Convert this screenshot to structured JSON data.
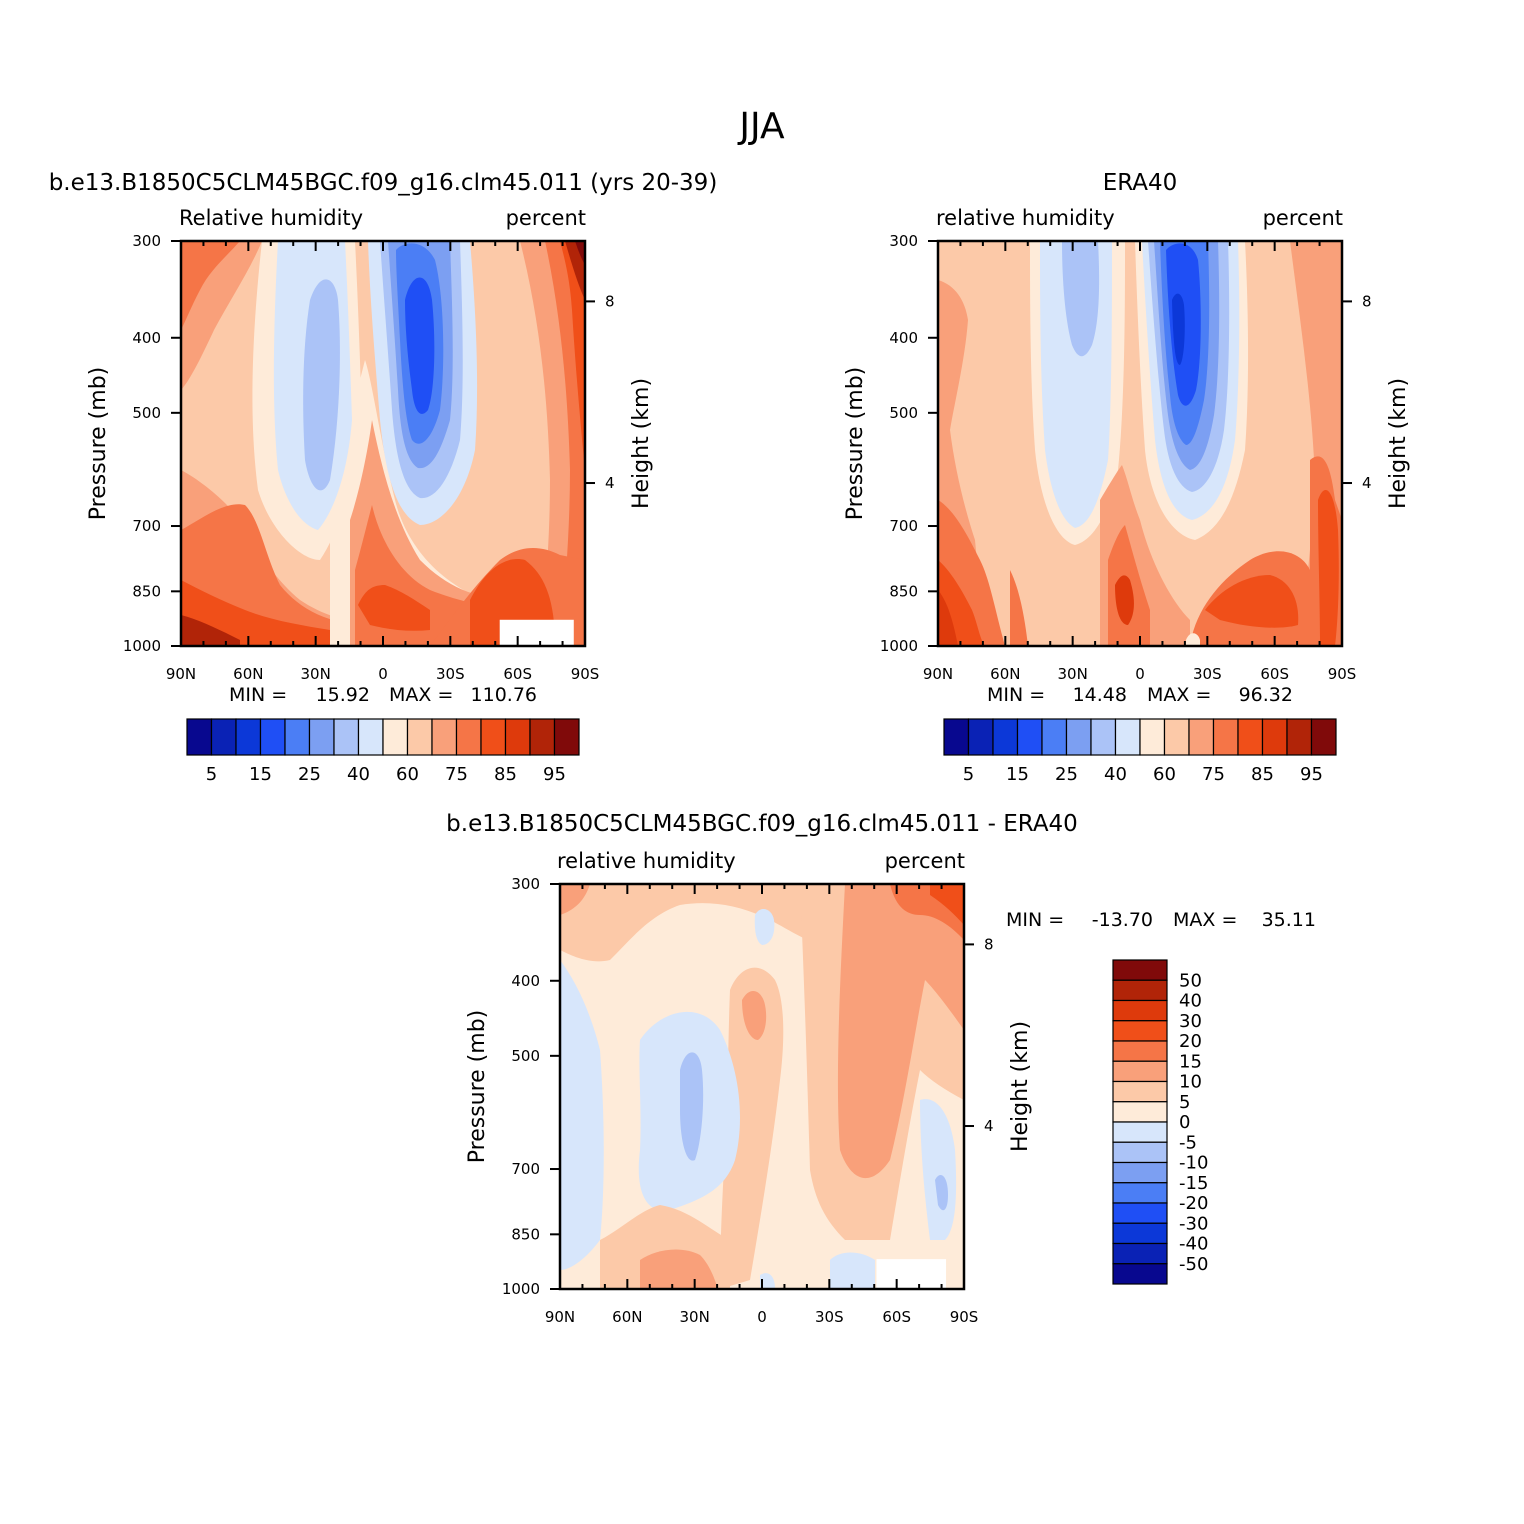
{
  "figure": {
    "season_title": "JJA"
  },
  "chart_data": [
    {
      "type": "heatmap",
      "id": "model",
      "title": "b.e13.B1850C5CLM45BGC.f09_g16.clm45.011 (yrs 20-39)",
      "left_label": "Relative humidity",
      "right_label": "percent",
      "ylabel": "Pressure (mb)",
      "ylabel_right": "Height (km)",
      "x_ticks": [
        "90N",
        "60N",
        "30N",
        "0",
        "30S",
        "60S",
        "90S"
      ],
      "x_values": [
        90,
        60,
        30,
        0,
        -30,
        -60,
        -90
      ],
      "xlim": [
        90,
        -90
      ],
      "y_ticks": [
        300,
        400,
        500,
        700,
        850,
        1000
      ],
      "ylim": [
        300,
        1000
      ],
      "y_scale": "log",
      "height_ticks": [
        {
          "label": "8",
          "pressure": 359
        },
        {
          "label": "4",
          "pressure": 616
        }
      ],
      "min_label": "MIN =",
      "min_value": "15.92",
      "max_label": "MAX =",
      "max_value": "110.76",
      "colorbar": {
        "orientation": "horizontal",
        "labels": [
          "5",
          "15",
          "25",
          "40",
          "60",
          "75",
          "85",
          "95"
        ],
        "colors": [
          "#08088f",
          "#0a22b5",
          "#0c38d8",
          "#1f4ff5",
          "#4b7ef5",
          "#7c9ff2",
          "#abc3f7",
          "#d7e6fb",
          "#feebd9",
          "#fcc9a8",
          "#f9a07a",
          "#f57547",
          "#f04f19",
          "#de3a0c",
          "#b12408",
          "#800a0a"
        ]
      },
      "masked_region": {
        "lat": [
          -52,
          -85
        ],
        "pressure": [
          925,
          1000
        ]
      }
    },
    {
      "type": "heatmap",
      "id": "obs",
      "title": "ERA40",
      "left_label": "relative humidity",
      "right_label": "percent",
      "ylabel": "Pressure (mb)",
      "ylabel_right": "Height (km)",
      "x_ticks": [
        "90N",
        "60N",
        "30N",
        "0",
        "30S",
        "60S",
        "90S"
      ],
      "x_values": [
        90,
        60,
        30,
        0,
        -30,
        -60,
        -90
      ],
      "xlim": [
        90,
        -90
      ],
      "y_ticks": [
        300,
        400,
        500,
        700,
        850,
        1000
      ],
      "ylim": [
        300,
        1000
      ],
      "y_scale": "log",
      "height_ticks": [
        {
          "label": "8",
          "pressure": 359
        },
        {
          "label": "4",
          "pressure": 616
        }
      ],
      "min_label": "MIN =",
      "min_value": "14.48",
      "max_label": "MAX =",
      "max_value": "96.32",
      "colorbar": {
        "orientation": "horizontal",
        "labels": [
          "5",
          "15",
          "25",
          "40",
          "60",
          "75",
          "85",
          "95"
        ],
        "colors": [
          "#08088f",
          "#0a22b5",
          "#0c38d8",
          "#1f4ff5",
          "#4b7ef5",
          "#7c9ff2",
          "#abc3f7",
          "#d7e6fb",
          "#feebd9",
          "#fcc9a8",
          "#f9a07a",
          "#f57547",
          "#f04f19",
          "#de3a0c",
          "#b12408",
          "#800a0a"
        ]
      }
    },
    {
      "type": "heatmap",
      "id": "diff",
      "title": "b.e13.B1850C5CLM45BGC.f09_g16.clm45.011 - ERA40",
      "left_label": "relative humidity",
      "right_label": "percent",
      "ylabel": "Pressure (mb)",
      "ylabel_right": "Height (km)",
      "x_ticks": [
        "90N",
        "60N",
        "30N",
        "0",
        "30S",
        "60S",
        "90S"
      ],
      "x_values": [
        90,
        60,
        30,
        0,
        -30,
        -60,
        -90
      ],
      "xlim": [
        90,
        -90
      ],
      "y_ticks": [
        300,
        400,
        500,
        700,
        850,
        1000
      ],
      "ylim": [
        300,
        1000
      ],
      "y_scale": "log",
      "height_ticks": [
        {
          "label": "8",
          "pressure": 359
        },
        {
          "label": "4",
          "pressure": 616
        }
      ],
      "min_label": "MIN =",
      "min_value": "-13.70",
      "max_label": "MAX =",
      "max_value": "35.11",
      "colorbar": {
        "orientation": "vertical",
        "labels": [
          "50",
          "40",
          "30",
          "20",
          "15",
          "10",
          "5",
          "0",
          "-5",
          "-10",
          "-15",
          "-20",
          "-30",
          "-40",
          "-50"
        ],
        "colors": [
          "#800a0a",
          "#b12408",
          "#de3a0c",
          "#f04f19",
          "#f57547",
          "#f9a07a",
          "#fcc9a8",
          "#feebd9",
          "#d7e6fb",
          "#abc3f7",
          "#7c9ff2",
          "#4b7ef5",
          "#1f4ff5",
          "#0c38d8",
          "#0a22b5",
          "#08088f"
        ]
      },
      "masked_region": {
        "lat": [
          -51,
          -82
        ],
        "pressure": [
          915,
          1000
        ]
      }
    }
  ]
}
